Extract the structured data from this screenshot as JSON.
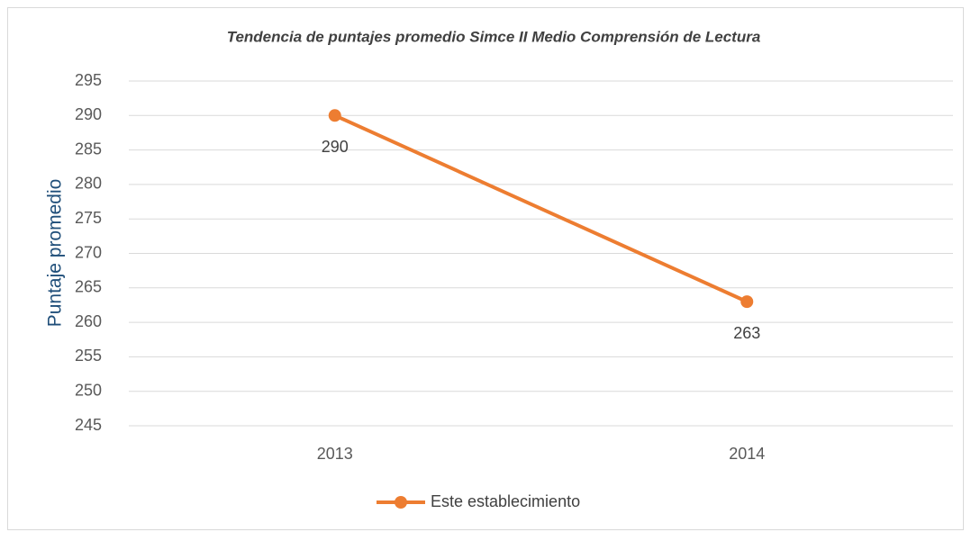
{
  "chart_data": {
    "type": "line",
    "title": "Tendencia de puntajes promedio Simce II Medio Comprensión de Lectura",
    "y_label": "Puntaje promedio",
    "categories": [
      "2013",
      "2014"
    ],
    "series": [
      {
        "name": "Este establecimiento",
        "color": "#ed7d31",
        "values": [
          290,
          263
        ]
      }
    ],
    "ylim": [
      245,
      295
    ],
    "yticks": [
      245,
      250,
      255,
      260,
      265,
      270,
      275,
      280,
      285,
      290,
      295
    ],
    "grid": true,
    "legend": "bottom",
    "data_labels": true
  }
}
